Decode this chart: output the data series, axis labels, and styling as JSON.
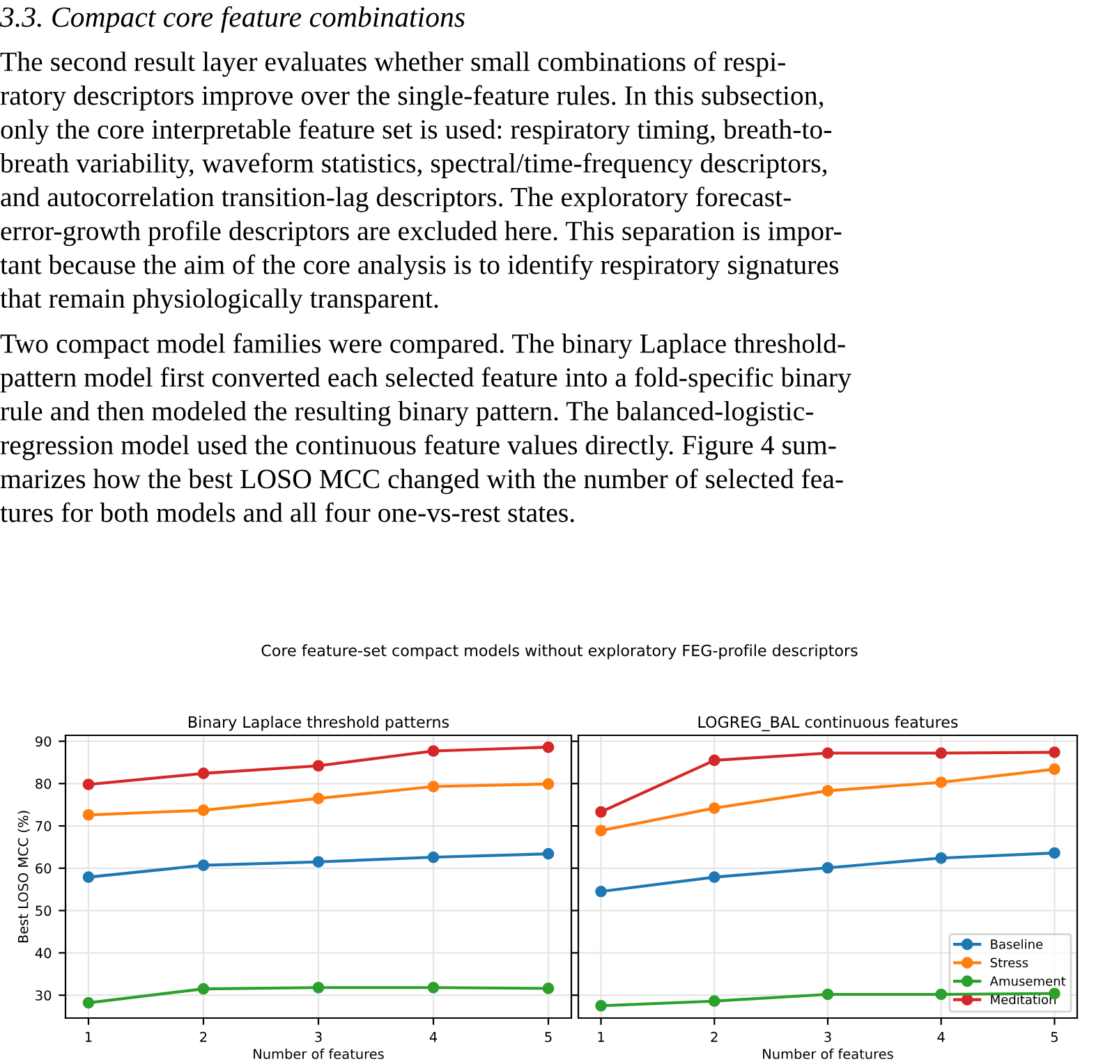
{
  "chart_data": [
    {
      "type": "other",
      "title": "3.3. Compact core feature combinations",
      "subtitle": "Core feature-set compact models without exploratory FEG-profile descriptors",
      "annotations": [
        "The second result layer evaluates whether small combinations of respi-",
        "ratory descriptors improve over the single-feature rules. In this subsection,",
        "only the core interpretable feature set is used: respiratory timing, breath-to-",
        "breath variability, waveform statistics, spectral/time-frequency descriptors,",
        "and autocorrelation transition-lag descriptors. The exploratory forecast-",
        "error-growth profile descriptors are excluded here. This separation is impor-",
        "tant because the aim of the core analysis is to identify respiratory signatures",
        "that remain physiologically transparent.",
        "Two compact model families were compared. The binary Laplace threshold-",
        "pattern model first converted each selected feature into a fold-specific binary",
        "rule and then modeled the resulting binary pattern. The balanced-logistic-",
        "regression model used the continuous feature values directly. Figure 4 sum-",
        "marizes how the best LOSO MCC changed with the number of selected fea-",
        "tures for both models and all four one-vs-rest states."
      ]
    },
    {
      "type": "line",
      "title": "Binary Laplace threshold patterns",
      "xlabel": "Number of features",
      "ylabel": "Best LOSO MCC (%)",
      "x": [
        1,
        2,
        3,
        4,
        5
      ],
      "xlim": [
        0.8,
        5.2
      ],
      "xticks": [
        1,
        2,
        3,
        4,
        5
      ],
      "ylim": [
        24.6,
        91.4
      ],
      "yticks": [
        30,
        40,
        50,
        60,
        70,
        80,
        90
      ],
      "grid": true,
      "marker": "circle",
      "legend": false,
      "series": [
        {
          "color": "#1f77b4",
          "values": [
            57.9,
            60.7,
            61.5,
            62.6,
            63.4
          ]
        },
        {
          "color": "#ff7f0e",
          "values": [
            72.6,
            73.7,
            76.5,
            79.3,
            79.9
          ]
        },
        {
          "color": "#2ca02c",
          "values": [
            28.2,
            31.5,
            31.8,
            31.8,
            31.6
          ]
        },
        {
          "color": "#d62728",
          "values": [
            79.8,
            82.4,
            84.2,
            87.7,
            88.6
          ]
        }
      ]
    },
    {
      "type": "line",
      "title": "LOGREG_BAL continuous features",
      "xlabel": "Number of features",
      "x": [
        1,
        2,
        3,
        4,
        5
      ],
      "xlim": [
        0.8,
        5.2
      ],
      "xticks": [
        1,
        2,
        3,
        4,
        5
      ],
      "ylim": [
        24.6,
        91.4
      ],
      "yticks": [
        30,
        40,
        50,
        60,
        70,
        80,
        90
      ],
      "tick_labels": "x",
      "grid": true,
      "marker": "circle",
      "legend": "bottom right",
      "series": [
        {
          "name": "Baseline",
          "color": "#1f77b4",
          "values": [
            54.5,
            57.9,
            60.1,
            62.4,
            63.6
          ]
        },
        {
          "name": "Stress",
          "color": "#ff7f0e",
          "values": [
            68.9,
            74.2,
            78.3,
            80.3,
            83.4
          ]
        },
        {
          "name": "Amusement",
          "color": "#2ca02c",
          "values": [
            27.5,
            28.6,
            30.2,
            30.2,
            30.4
          ]
        },
        {
          "name": "Meditation",
          "color": "#d62728",
          "values": [
            73.3,
            85.5,
            87.2,
            87.2,
            87.4
          ]
        }
      ]
    }
  ]
}
